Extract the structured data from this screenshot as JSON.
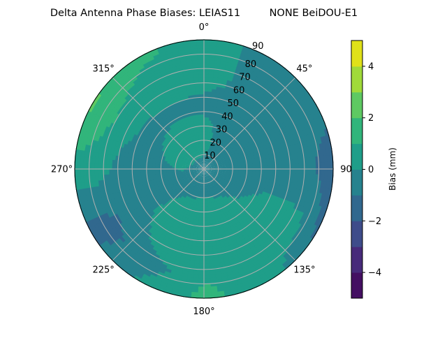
{
  "chart_data": {
    "type": "heatmap",
    "subtype": "polar-filled-contour",
    "title": "Delta Antenna Phase Biases: LEIAS11         NONE BeiDOU-E1",
    "theta_zero": "N",
    "theta_direction": "clockwise",
    "theta_tick_labels": [
      "0°",
      "45°",
      "90",
      "135°",
      "180°",
      "225°",
      "270°",
      "315°"
    ],
    "theta_ticks": [
      0,
      45,
      90,
      135,
      180,
      225,
      270,
      315
    ],
    "r_ticks": [
      10,
      20,
      30,
      40,
      50,
      60,
      70,
      80,
      90
    ],
    "r_tick_labels": [
      "10",
      "20",
      "30",
      "40",
      "50",
      "60",
      "70",
      "80",
      "90"
    ],
    "rlim": [
      0,
      90
    ],
    "grid": true,
    "azimuths": [
      0,
      30,
      60,
      90,
      120,
      150,
      180,
      210,
      240,
      270,
      300,
      330
    ],
    "zenith": [
      0,
      15,
      30,
      45,
      60,
      75,
      90
    ],
    "values": [
      [
        -0.5,
        -0.5,
        -0.5,
        -0.5,
        -0.5,
        -0.5,
        -0.5,
        -0.5,
        -0.5,
        -0.5,
        -0.5,
        -0.5
      ],
      [
        0.3,
        -0.3,
        -0.5,
        -0.5,
        -0.3,
        -0.3,
        -0.2,
        -0.4,
        -0.5,
        0.1,
        0.5,
        0.5
      ],
      [
        0.3,
        -0.4,
        -0.5,
        -0.6,
        -0.2,
        0.3,
        0.5,
        0.4,
        -0.3,
        -0.2,
        0.1,
        0.3
      ],
      [
        -0.3,
        -0.5,
        -0.5,
        -0.6,
        0.2,
        0.6,
        0.6,
        0.5,
        -0.2,
        -0.5,
        -0.4,
        -0.2
      ],
      [
        0.3,
        -0.3,
        -0.5,
        -0.6,
        0.3,
        0.6,
        0.7,
        0.4,
        -0.8,
        -0.3,
        0.4,
        0.5
      ],
      [
        0.5,
        -0.3,
        -0.5,
        -0.9,
        0.2,
        0.3,
        0.9,
        -0.5,
        -1.3,
        0.5,
        1.3,
        0.7
      ],
      [
        0.5,
        -0.4,
        -0.6,
        -1.6,
        -1.2,
        0.5,
        1.3,
        0.2,
        -1.3,
        0.6,
        2.2,
        1.3
      ]
    ],
    "colorbar": {
      "label": "Bias (mm)",
      "levels": [
        -5,
        -4,
        -3,
        -2,
        -1,
        0,
        1,
        2,
        3,
        4,
        5
      ],
      "tick_values": [
        -4,
        -2,
        0,
        2,
        4
      ],
      "tick_labels": [
        "−4",
        "−2",
        "0",
        "2",
        "4"
      ],
      "colormap": "viridis",
      "colors": [
        "#440f62",
        "#472a7a",
        "#3e4c8a",
        "#31688e",
        "#26828e",
        "#1f9e89",
        "#31b57b",
        "#5ec962",
        "#a0da39",
        "#e0e119"
      ]
    }
  }
}
